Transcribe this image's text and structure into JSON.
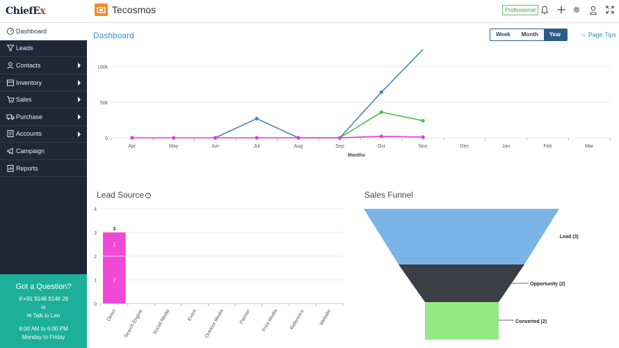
{
  "sidebar": {
    "logo": {
      "main": "ChiefE",
      "accent": "x"
    },
    "items": [
      {
        "label": "Dashboard",
        "icon": "dashboard-icon",
        "active": true,
        "submenu": false
      },
      {
        "label": "Leads",
        "icon": "funnel-icon",
        "active": false,
        "submenu": false
      },
      {
        "label": "Contacts",
        "icon": "user-icon",
        "active": false,
        "submenu": true
      },
      {
        "label": "Inventory",
        "icon": "box-icon",
        "active": false,
        "submenu": true
      },
      {
        "label": "Sales",
        "icon": "cart-icon",
        "active": false,
        "submenu": true
      },
      {
        "label": "Purchase",
        "icon": "truck-icon",
        "active": false,
        "submenu": true
      },
      {
        "label": "Accounts",
        "icon": "ledger-icon",
        "active": false,
        "submenu": true
      },
      {
        "label": "Campaign",
        "icon": "megaphone-icon",
        "active": false,
        "submenu": false
      },
      {
        "label": "Reports",
        "icon": "report-icon",
        "active": false,
        "submenu": false
      }
    ],
    "help": {
      "title": "Got a Question?",
      "phone": "+91 9146 9146 26",
      "or": "or",
      "chat": "Talk to Leo",
      "hours": "9:00 AM to 6:00 PM",
      "days": "Monday to Friday"
    }
  },
  "topbar": {
    "app_name": "Tecosmos",
    "plan": "Professional",
    "icons": [
      "bell-icon",
      "plus-icon",
      "gear-icon",
      "user-icon",
      "expand-icon"
    ]
  },
  "dashboard": {
    "title": "Dashboard",
    "range_tabs": [
      "Week",
      "Month",
      "Year"
    ],
    "active_range": "Year",
    "page_tips": "Page Tips"
  },
  "colors": {
    "blue": "#4a86b8",
    "green": "#4cc24c",
    "magenta": "#e33ad8",
    "funnel_top": "#7ab4e6",
    "funnel_mid": "#3b3e44",
    "funnel_bot": "#96e886",
    "bar": "#f049d8"
  },
  "chart_data": [
    {
      "type": "line",
      "xlabel": "Months",
      "ylabel": "",
      "categories": [
        "Apr",
        "May",
        "Jun",
        "Jul",
        "Aug",
        "Sep",
        "Oct",
        "Nov",
        "Dec",
        "Jan",
        "Feb",
        "Mar"
      ],
      "yticks": [
        "0",
        "50k",
        "100k"
      ],
      "ylim": [
        0,
        125000
      ],
      "series": [
        {
          "values": [
            null,
            null,
            0,
            27000,
            0,
            0,
            64000,
            124000,
            null,
            null,
            null,
            null
          ],
          "color": "#4a86b8",
          "markers": [
            false,
            false,
            true,
            true,
            true,
            true,
            true,
            false
          ]
        },
        {
          "values": [
            null,
            null,
            null,
            null,
            null,
            0,
            36000,
            24000,
            null,
            null,
            null,
            null
          ],
          "color": "#4cc24c"
        },
        {
          "values": [
            0,
            0,
            0,
            0,
            0,
            0,
            2000,
            1000,
            null,
            null,
            null,
            null
          ],
          "color": "#e33ad8"
        }
      ],
      "grid": true
    },
    {
      "type": "bar",
      "title": "Lead Source",
      "categories": [
        "Direct",
        "Search Engine",
        "Social Media",
        "Event",
        "Outdoor Media",
        "Partner",
        "Print Media",
        "Reference",
        "Website"
      ],
      "values": [
        3,
        0,
        0,
        0,
        0,
        0,
        0,
        0,
        0
      ],
      "segments": [
        [
          "1",
          "2"
        ]
      ],
      "ylim": [
        0,
        4
      ],
      "yticks": [
        "0",
        "1",
        "2",
        "3",
        "4"
      ],
      "grid": true
    },
    {
      "type": "funnel",
      "title": "Sales Funnel",
      "stages": [
        {
          "label": "Lead (3)",
          "value": 3
        },
        {
          "label": "Opportunity (2)",
          "value": 2
        },
        {
          "label": "Converted (2)",
          "value": 2
        }
      ]
    }
  ]
}
